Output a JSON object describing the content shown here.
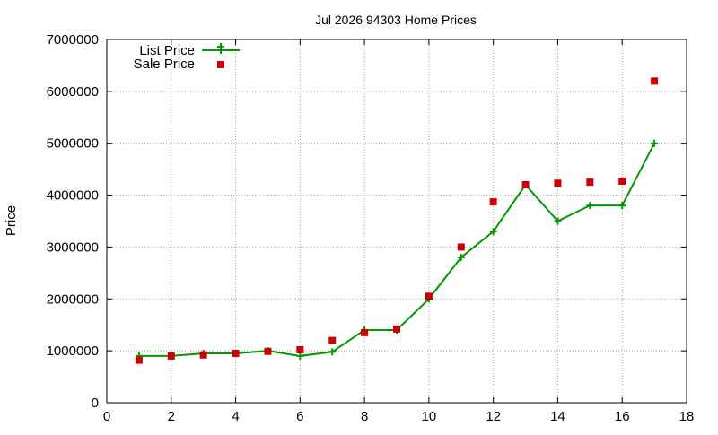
{
  "chart_data": {
    "type": "line",
    "title": "Jul 2026 94303 Home Prices",
    "xlabel": "",
    "ylabel": "Price",
    "xlim": [
      0,
      18
    ],
    "ylim": [
      0,
      7000000
    ],
    "xticks": [
      0,
      2,
      4,
      6,
      8,
      10,
      12,
      14,
      16,
      18
    ],
    "yticks": [
      0,
      1000000,
      2000000,
      3000000,
      4000000,
      5000000,
      6000000,
      7000000
    ],
    "grid": true,
    "legend_position": "top-left",
    "series": [
      {
        "name": "List Price",
        "style": "line-points",
        "color": "#009900",
        "x": [
          1,
          2,
          3,
          4,
          5,
          6,
          7,
          8,
          9,
          10,
          11,
          12,
          13,
          14,
          15,
          16,
          17
        ],
        "y": [
          900000,
          900000,
          950000,
          950000,
          1000000,
          900000,
          980000,
          1400000,
          1400000,
          2000000,
          2800000,
          3300000,
          4200000,
          3500000,
          3800000,
          3800000,
          5000000
        ]
      },
      {
        "name": "Sale Price",
        "style": "points",
        "color": "#cc0000",
        "x": [
          1,
          2,
          3,
          4,
          5,
          6,
          7,
          8,
          9,
          10,
          11,
          12,
          13,
          14,
          15,
          16,
          17
        ],
        "y": [
          820000,
          900000,
          920000,
          950000,
          990000,
          1020000,
          1200000,
          1350000,
          1420000,
          2050000,
          3000000,
          3870000,
          4200000,
          4230000,
          4250000,
          4270000,
          6200000
        ]
      }
    ]
  }
}
